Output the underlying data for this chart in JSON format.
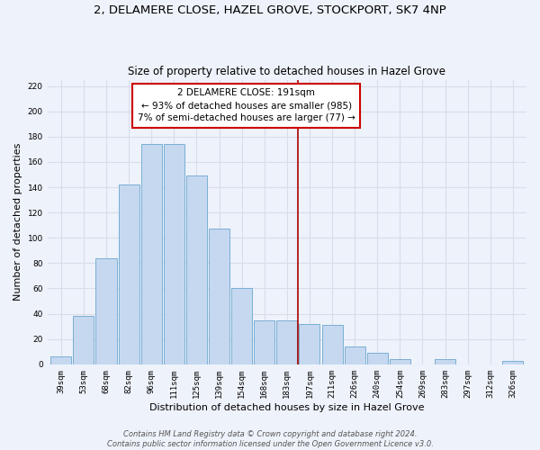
{
  "title": "2, DELAMERE CLOSE, HAZEL GROVE, STOCKPORT, SK7 4NP",
  "subtitle": "Size of property relative to detached houses in Hazel Grove",
  "xlabel": "Distribution of detached houses by size in Hazel Grove",
  "ylabel": "Number of detached properties",
  "bar_labels": [
    "39sqm",
    "53sqm",
    "68sqm",
    "82sqm",
    "96sqm",
    "111sqm",
    "125sqm",
    "139sqm",
    "154sqm",
    "168sqm",
    "183sqm",
    "197sqm",
    "211sqm",
    "226sqm",
    "240sqm",
    "254sqm",
    "269sqm",
    "283sqm",
    "297sqm",
    "312sqm",
    "326sqm"
  ],
  "bar_values": [
    6,
    38,
    84,
    142,
    174,
    174,
    149,
    107,
    60,
    35,
    35,
    32,
    31,
    14,
    9,
    4,
    0,
    4,
    0,
    0,
    3
  ],
  "bar_color": "#c5d8f0",
  "bar_edge_color": "#7aafd4",
  "annotation_title": "2 DELAMERE CLOSE: 191sqm",
  "annotation_line1": "← 93% of detached houses are smaller (985)",
  "annotation_line2": "7% of semi-detached houses are larger (77) →",
  "annotation_box_color": "#ffffff",
  "annotation_box_edge_color": "#cc0000",
  "vline_color": "#aa0000",
  "ylim": [
    0,
    225
  ],
  "yticks": [
    0,
    20,
    40,
    60,
    80,
    100,
    120,
    140,
    160,
    180,
    200,
    220
  ],
  "footer_line1": "Contains HM Land Registry data © Crown copyright and database right 2024.",
  "footer_line2": "Contains public sector information licensed under the Open Government Licence v3.0.",
  "bg_color": "#eef2fa",
  "grid_color": "#d8dde8",
  "title_fontsize": 9.5,
  "subtitle_fontsize": 8.5,
  "axis_label_fontsize": 8,
  "tick_fontsize": 6.5,
  "footer_fontsize": 6,
  "annotation_fontsize": 7.5
}
